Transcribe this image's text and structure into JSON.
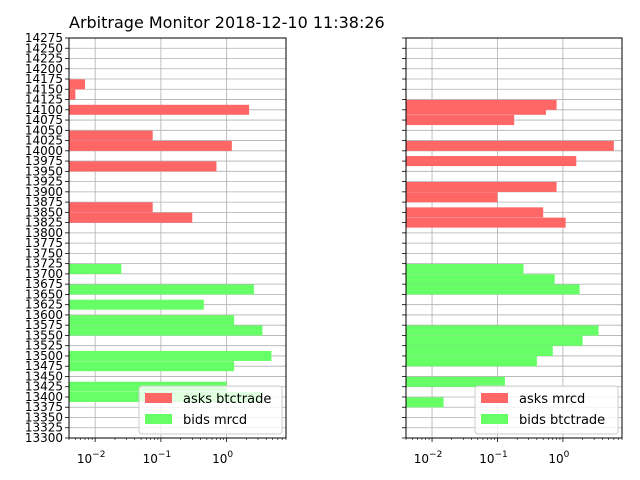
{
  "title": "Arbitrage Monitor 2018-12-10 11:38:26",
  "chart_data": [
    {
      "type": "bar",
      "orientation": "horizontal",
      "x_scale": "log",
      "xlim": [
        0.004,
        8
      ],
      "x_ticks": [
        0.01,
        0.1,
        1
      ],
      "x_tick_labels": [
        {
          "base": "10",
          "exp": "−2"
        },
        {
          "base": "10",
          "exp": "−1"
        },
        {
          "base": "10",
          "exp": "0"
        }
      ],
      "ylim": [
        13300,
        14275
      ],
      "y_ticks": [
        13300,
        13325,
        13350,
        13375,
        13400,
        13425,
        13450,
        13475,
        13500,
        13525,
        13550,
        13575,
        13600,
        13625,
        13650,
        13675,
        13700,
        13725,
        13750,
        13775,
        13800,
        13825,
        13850,
        13875,
        13900,
        13925,
        13950,
        13975,
        14000,
        14025,
        14050,
        14075,
        14100,
        14125,
        14150,
        14175,
        14200,
        14225,
        14250,
        14275
      ],
      "grid": true,
      "legend_position": "lower right",
      "series": [
        {
          "name": "asks btctrade",
          "color": "#ff6666",
          "bars": [
            {
              "y": 14162,
              "value": 0.007
            },
            {
              "y": 14137,
              "value": 0.005
            },
            {
              "y": 14100,
              "value": 2.2
            },
            {
              "y": 14037,
              "value": 0.075
            },
            {
              "y": 14012,
              "value": 1.2
            },
            {
              "y": 13962,
              "value": 0.7
            },
            {
              "y": 13862,
              "value": 0.075
            },
            {
              "y": 13837,
              "value": 0.3
            }
          ]
        },
        {
          "name": "bids mrcd",
          "color": "#66ff66",
          "bars": [
            {
              "y": 13712,
              "value": 0.025
            },
            {
              "y": 13662,
              "value": 2.6
            },
            {
              "y": 13625,
              "value": 0.45
            },
            {
              "y": 13587,
              "value": 1.3
            },
            {
              "y": 13562,
              "value": 3.5
            },
            {
              "y": 13500,
              "value": 4.8
            },
            {
              "y": 13475,
              "value": 1.3
            },
            {
              "y": 13425,
              "value": 1.0
            },
            {
              "y": 13400,
              "value": 3.5
            }
          ]
        }
      ]
    },
    {
      "type": "bar",
      "orientation": "horizontal",
      "x_scale": "log",
      "xlim": [
        0.004,
        8
      ],
      "x_ticks": [
        0.01,
        0.1,
        1
      ],
      "x_tick_labels": [
        {
          "base": "10",
          "exp": "−2"
        },
        {
          "base": "10",
          "exp": "−1"
        },
        {
          "base": "10",
          "exp": "0"
        }
      ],
      "ylim": [
        13300,
        14275
      ],
      "grid": true,
      "legend_position": "lower right",
      "series": [
        {
          "name": "asks mrcd",
          "color": "#ff6666",
          "bars": [
            {
              "y": 14112,
              "value": 0.8
            },
            {
              "y": 14100,
              "value": 0.55
            },
            {
              "y": 14075,
              "value": 0.18
            },
            {
              "y": 14012,
              "value": 6.0
            },
            {
              "y": 13975,
              "value": 1.6
            },
            {
              "y": 13912,
              "value": 0.8
            },
            {
              "y": 13887,
              "value": 0.1
            },
            {
              "y": 13850,
              "value": 0.5
            },
            {
              "y": 13825,
              "value": 1.1
            }
          ]
        },
        {
          "name": "bids btctrade",
          "color": "#66ff66",
          "bars": [
            {
              "y": 13712,
              "value": 0.25
            },
            {
              "y": 13687,
              "value": 0.75
            },
            {
              "y": 13662,
              "value": 1.8
            },
            {
              "y": 13562,
              "value": 3.5
            },
            {
              "y": 13537,
              "value": 2.0
            },
            {
              "y": 13512,
              "value": 0.7
            },
            {
              "y": 13487,
              "value": 0.4
            },
            {
              "y": 13437,
              "value": 0.13
            },
            {
              "y": 13387,
              "value": 0.015
            }
          ]
        }
      ]
    }
  ]
}
